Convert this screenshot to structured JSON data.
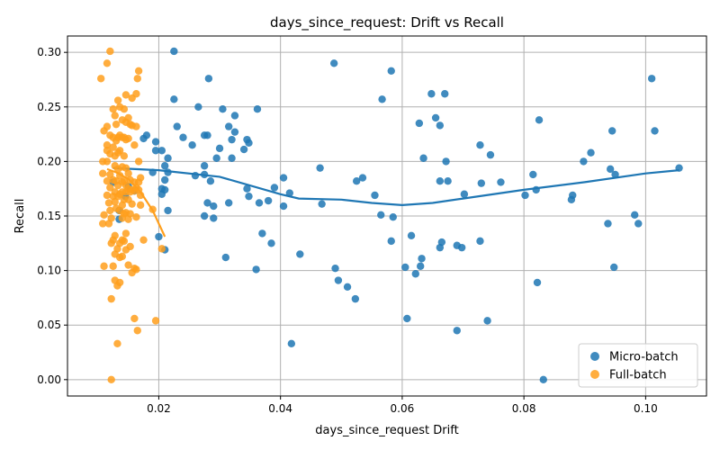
{
  "chart_data": {
    "type": "scatter",
    "title": "days_since_request: Drift vs Recall",
    "xlabel": "days_since_request Drift",
    "ylabel": "Recall",
    "xlim": [
      0.005,
      0.11
    ],
    "ylim": [
      -0.015,
      0.315
    ],
    "xticks": [
      0.02,
      0.04,
      0.06,
      0.08,
      0.1
    ],
    "xtick_labels": [
      "0.02",
      "0.04",
      "0.06",
      "0.08",
      "0.10"
    ],
    "yticks": [
      0.0,
      0.05,
      0.1,
      0.15,
      0.2,
      0.25,
      0.3
    ],
    "ytick_labels": [
      "0.00",
      "0.05",
      "0.10",
      "0.15",
      "0.20",
      "0.25",
      "0.30"
    ],
    "grid": true,
    "legend_position": "bottom-right",
    "series": [
      {
        "name": "Micro-batch",
        "color": "#1f77b4",
        "trend": [
          [
            0.0125,
            0.194
          ],
          [
            0.02,
            0.192
          ],
          [
            0.03,
            0.186
          ],
          [
            0.04,
            0.17
          ],
          [
            0.043,
            0.166
          ],
          [
            0.05,
            0.165
          ],
          [
            0.055,
            0.162
          ],
          [
            0.06,
            0.16
          ],
          [
            0.065,
            0.162
          ],
          [
            0.07,
            0.166
          ],
          [
            0.08,
            0.174
          ],
          [
            0.09,
            0.181
          ],
          [
            0.1,
            0.189
          ],
          [
            0.1055,
            0.192
          ]
        ],
        "points": [
          [
            0.0125,
            0.181
          ],
          [
            0.0135,
            0.155
          ],
          [
            0.0135,
            0.147
          ],
          [
            0.0145,
            0.168
          ],
          [
            0.015,
            0.177
          ],
          [
            0.016,
            0.173
          ],
          [
            0.0175,
            0.221
          ],
          [
            0.018,
            0.224
          ],
          [
            0.019,
            0.19
          ],
          [
            0.0195,
            0.21
          ],
          [
            0.0195,
            0.218
          ],
          [
            0.0205,
            0.17
          ],
          [
            0.0205,
            0.175
          ],
          [
            0.02,
            0.131
          ],
          [
            0.021,
            0.174
          ],
          [
            0.021,
            0.183
          ],
          [
            0.021,
            0.196
          ],
          [
            0.0215,
            0.155
          ],
          [
            0.0215,
            0.19
          ],
          [
            0.0215,
            0.203
          ],
          [
            0.021,
            0.119
          ],
          [
            0.0205,
            0.21
          ],
          [
            0.0225,
            0.301
          ],
          [
            0.0225,
            0.257
          ],
          [
            0.023,
            0.232
          ],
          [
            0.024,
            0.222
          ],
          [
            0.0255,
            0.215
          ],
          [
            0.026,
            0.187
          ],
          [
            0.0265,
            0.25
          ],
          [
            0.0275,
            0.224
          ],
          [
            0.0275,
            0.15
          ],
          [
            0.0275,
            0.196
          ],
          [
            0.0275,
            0.188
          ],
          [
            0.028,
            0.162
          ],
          [
            0.028,
            0.224
          ],
          [
            0.0285,
            0.182
          ],
          [
            0.0282,
            0.276
          ],
          [
            0.029,
            0.159
          ],
          [
            0.029,
            0.148
          ],
          [
            0.0295,
            0.203
          ],
          [
            0.03,
            0.212
          ],
          [
            0.0305,
            0.248
          ],
          [
            0.031,
            0.112
          ],
          [
            0.0315,
            0.232
          ],
          [
            0.0315,
            0.162
          ],
          [
            0.032,
            0.203
          ],
          [
            0.032,
            0.22
          ],
          [
            0.0325,
            0.227
          ],
          [
            0.0325,
            0.242
          ],
          [
            0.034,
            0.211
          ],
          [
            0.0345,
            0.22
          ],
          [
            0.0345,
            0.175
          ],
          [
            0.0348,
            0.217
          ],
          [
            0.0348,
            0.168
          ],
          [
            0.036,
            0.101
          ],
          [
            0.0362,
            0.248
          ],
          [
            0.0365,
            0.162
          ],
          [
            0.037,
            0.134
          ],
          [
            0.038,
            0.164
          ],
          [
            0.0385,
            0.125
          ],
          [
            0.039,
            0.176
          ],
          [
            0.0405,
            0.185
          ],
          [
            0.0405,
            0.159
          ],
          [
            0.0415,
            0.171
          ],
          [
            0.0418,
            0.033
          ],
          [
            0.0432,
            0.115
          ],
          [
            0.0465,
            0.194
          ],
          [
            0.0468,
            0.161
          ],
          [
            0.0488,
            0.29
          ],
          [
            0.049,
            0.102
          ],
          [
            0.0495,
            0.091
          ],
          [
            0.051,
            0.085
          ],
          [
            0.0523,
            0.074
          ],
          [
            0.0525,
            0.182
          ],
          [
            0.0535,
            0.185
          ],
          [
            0.0555,
            0.169
          ],
          [
            0.0565,
            0.151
          ],
          [
            0.0567,
            0.257
          ],
          [
            0.0582,
            0.127
          ],
          [
            0.0582,
            0.283
          ],
          [
            0.0585,
            0.149
          ],
          [
            0.0605,
            0.103
          ],
          [
            0.0608,
            0.056
          ],
          [
            0.0615,
            0.132
          ],
          [
            0.0622,
            0.097
          ],
          [
            0.0628,
            0.235
          ],
          [
            0.063,
            0.104
          ],
          [
            0.0632,
            0.111
          ],
          [
            0.0635,
            0.203
          ],
          [
            0.0648,
            0.262
          ],
          [
            0.0655,
            0.24
          ],
          [
            0.0662,
            0.233
          ],
          [
            0.0662,
            0.182
          ],
          [
            0.0662,
            0.121
          ],
          [
            0.0665,
            0.126
          ],
          [
            0.067,
            0.262
          ],
          [
            0.0672,
            0.2
          ],
          [
            0.0675,
            0.182
          ],
          [
            0.069,
            0.045
          ],
          [
            0.069,
            0.123
          ],
          [
            0.0698,
            0.121
          ],
          [
            0.0702,
            0.17
          ],
          [
            0.0728,
            0.127
          ],
          [
            0.0728,
            0.215
          ],
          [
            0.073,
            0.18
          ],
          [
            0.074,
            0.054
          ],
          [
            0.0745,
            0.206
          ],
          [
            0.0762,
            0.181
          ],
          [
            0.0802,
            0.169
          ],
          [
            0.0815,
            0.188
          ],
          [
            0.082,
            0.174
          ],
          [
            0.0822,
            0.089
          ],
          [
            0.0825,
            0.238
          ],
          [
            0.0832,
            0.0
          ],
          [
            0.0878,
            0.165
          ],
          [
            0.088,
            0.169
          ],
          [
            0.0898,
            0.2
          ],
          [
            0.091,
            0.208
          ],
          [
            0.0938,
            0.143
          ],
          [
            0.0942,
            0.193
          ],
          [
            0.0945,
            0.228
          ],
          [
            0.0948,
            0.103
          ],
          [
            0.095,
            0.188
          ],
          [
            0.0982,
            0.151
          ],
          [
            0.0988,
            0.143
          ],
          [
            0.101,
            0.276
          ],
          [
            0.1015,
            0.228
          ],
          [
            0.1055,
            0.194
          ]
        ]
      },
      {
        "name": "Full-batch",
        "color": "#ff9f1c",
        "trend": [
          [
            0.0115,
            0.193
          ],
          [
            0.013,
            0.19
          ],
          [
            0.015,
            0.184
          ],
          [
            0.017,
            0.172
          ],
          [
            0.019,
            0.155
          ],
          [
            0.021,
            0.131
          ]
        ],
        "points": [
          [
            0.0105,
            0.276
          ],
          [
            0.011,
            0.228
          ],
          [
            0.0108,
            0.2
          ],
          [
            0.0108,
            0.189
          ],
          [
            0.011,
            0.151
          ],
          [
            0.0108,
            0.143
          ],
          [
            0.011,
            0.104
          ],
          [
            0.0115,
            0.29
          ],
          [
            0.0115,
            0.232
          ],
          [
            0.0115,
            0.215
          ],
          [
            0.0115,
            0.21
          ],
          [
            0.0115,
            0.2
          ],
          [
            0.0115,
            0.182
          ],
          [
            0.0115,
            0.169
          ],
          [
            0.0118,
            0.162
          ],
          [
            0.0118,
            0.143
          ],
          [
            0.012,
            0.301
          ],
          [
            0.012,
            0.224
          ],
          [
            0.012,
            0.207
          ],
          [
            0.012,
            0.188
          ],
          [
            0.012,
            0.176
          ],
          [
            0.012,
            0.155
          ],
          [
            0.0122,
            0.148
          ],
          [
            0.0122,
            0.125
          ],
          [
            0.0122,
            0.074
          ],
          [
            0.0122,
            0.0
          ],
          [
            0.0125,
            0.248
          ],
          [
            0.0125,
            0.222
          ],
          [
            0.0125,
            0.213
          ],
          [
            0.0125,
            0.183
          ],
          [
            0.0125,
            0.168
          ],
          [
            0.0125,
            0.128
          ],
          [
            0.0125,
            0.104
          ],
          [
            0.0128,
            0.242
          ],
          [
            0.0128,
            0.205
          ],
          [
            0.0128,
            0.196
          ],
          [
            0.0128,
            0.172
          ],
          [
            0.0128,
            0.163
          ],
          [
            0.0128,
            0.132
          ],
          [
            0.0128,
            0.115
          ],
          [
            0.0128,
            0.091
          ],
          [
            0.013,
            0.234
          ],
          [
            0.013,
            0.219
          ],
          [
            0.013,
            0.182
          ],
          [
            0.013,
            0.157
          ],
          [
            0.0132,
            0.12
          ],
          [
            0.0132,
            0.086
          ],
          [
            0.0132,
            0.033
          ],
          [
            0.0133,
            0.256
          ],
          [
            0.0133,
            0.222
          ],
          [
            0.0133,
            0.208
          ],
          [
            0.0133,
            0.193
          ],
          [
            0.0133,
            0.178
          ],
          [
            0.0133,
            0.168
          ],
          [
            0.0136,
            0.25
          ],
          [
            0.0136,
            0.224
          ],
          [
            0.0136,
            0.21
          ],
          [
            0.0136,
            0.187
          ],
          [
            0.0136,
            0.17
          ],
          [
            0.0136,
            0.155
          ],
          [
            0.0136,
            0.125
          ],
          [
            0.0136,
            0.112
          ],
          [
            0.0136,
            0.089
          ],
          [
            0.014,
            0.238
          ],
          [
            0.014,
            0.222
          ],
          [
            0.014,
            0.195
          ],
          [
            0.014,
            0.181
          ],
          [
            0.014,
            0.172
          ],
          [
            0.014,
            0.16
          ],
          [
            0.014,
            0.148
          ],
          [
            0.014,
            0.128
          ],
          [
            0.014,
            0.113
          ],
          [
            0.0143,
            0.248
          ],
          [
            0.0143,
            0.222
          ],
          [
            0.0143,
            0.205
          ],
          [
            0.0143,
            0.182
          ],
          [
            0.0143,
            0.165
          ],
          [
            0.0143,
            0.152
          ],
          [
            0.0143,
            0.127
          ],
          [
            0.0146,
            0.261
          ],
          [
            0.0146,
            0.236
          ],
          [
            0.0146,
            0.22
          ],
          [
            0.0146,
            0.194
          ],
          [
            0.0146,
            0.178
          ],
          [
            0.0146,
            0.172
          ],
          [
            0.0146,
            0.153
          ],
          [
            0.0146,
            0.134
          ],
          [
            0.0146,
            0.119
          ],
          [
            0.015,
            0.24
          ],
          [
            0.015,
            0.221
          ],
          [
            0.015,
            0.189
          ],
          [
            0.015,
            0.175
          ],
          [
            0.015,
            0.165
          ],
          [
            0.015,
            0.147
          ],
          [
            0.015,
            0.105
          ],
          [
            0.0153,
            0.234
          ],
          [
            0.0153,
            0.183
          ],
          [
            0.0153,
            0.172
          ],
          [
            0.0153,
            0.152
          ],
          [
            0.0153,
            0.122
          ],
          [
            0.0156,
            0.258
          ],
          [
            0.0156,
            0.233
          ],
          [
            0.0156,
            0.174
          ],
          [
            0.0156,
            0.161
          ],
          [
            0.0156,
            0.098
          ],
          [
            0.016,
            0.215
          ],
          [
            0.016,
            0.181
          ],
          [
            0.016,
            0.173
          ],
          [
            0.016,
            0.102
          ],
          [
            0.016,
            0.056
          ],
          [
            0.0163,
            0.232
          ],
          [
            0.0163,
            0.262
          ],
          [
            0.0163,
            0.176
          ],
          [
            0.0163,
            0.149
          ],
          [
            0.0163,
            0.101
          ],
          [
            0.0165,
            0.276
          ],
          [
            0.0165,
            0.045
          ],
          [
            0.0167,
            0.283
          ],
          [
            0.0167,
            0.2
          ],
          [
            0.0167,
            0.181
          ],
          [
            0.0167,
            0.174
          ],
          [
            0.017,
            0.185
          ],
          [
            0.017,
            0.169
          ],
          [
            0.017,
            0.16
          ],
          [
            0.0175,
            0.128
          ],
          [
            0.019,
            0.156
          ],
          [
            0.0195,
            0.054
          ],
          [
            0.0205,
            0.12
          ]
        ]
      }
    ]
  }
}
